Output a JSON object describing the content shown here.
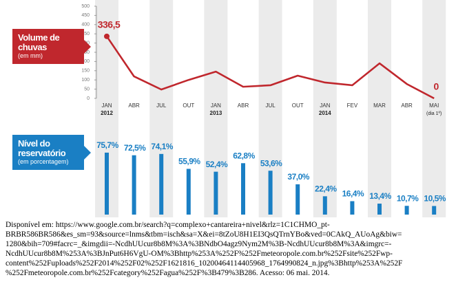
{
  "chart_data": [
    {
      "type": "line",
      "categories": [
        "JAN",
        "ABR",
        "JUL",
        "OUT",
        "JAN",
        "ABR",
        "JUL",
        "OUT",
        "JAN",
        "FEV",
        "MAR",
        "ABR",
        "MAI"
      ],
      "sub_labels": [
        "2012",
        null,
        null,
        null,
        "2013",
        null,
        null,
        null,
        "2014",
        null,
        null,
        null,
        "(dia 1º)"
      ],
      "series": [
        {
          "name": "Volume de chuvas",
          "unit_label": "(em mm)",
          "color": "#c0272d",
          "values": [
            336.5,
            119,
            48,
            100,
            145,
            63,
            71,
            123,
            86,
            71,
            190,
            78,
            0
          ],
          "value_labels": [
            "336,5",
            null,
            null,
            null,
            null,
            null,
            null,
            null,
            null,
            null,
            null,
            null,
            "0"
          ]
        }
      ],
      "ylim": [
        0,
        500
      ],
      "yticks": [
        0,
        50,
        100,
        150,
        200,
        250,
        300,
        350,
        400,
        450,
        500
      ]
    },
    {
      "type": "bar",
      "series": [
        {
          "name": "Nível do reservatório",
          "unit_label": "(em porcentagem)",
          "color": "#1a7fc4",
          "values": [
            75.7,
            72.5,
            74.1,
            55.9,
            52.4,
            62.8,
            53.6,
            37.0,
            22.4,
            16.4,
            13.4,
            10.7,
            10.5
          ],
          "value_labels": [
            "75,7%",
            "72,5%",
            "74,1%",
            "55,9%",
            "52,4%",
            "62,8%",
            "53,6%",
            "37,0%",
            "22,4%",
            "16,4%",
            "13,4%",
            "10,7%",
            "10,5%"
          ]
        }
      ]
    }
  ],
  "caption": [
    "Disponível em: https://www.google.com.br/search?q=complexo+cantareira+nivel&rlz=1C1CHMO_pt-",
    "BRBR586BR586&es_sm=93&source=lnms&tbm=isch&sa=X&ei=8tZoU8H1EI3QsQTrnYBo&ved=0CAkQ_AUoAg&biw=",
    "1280&bih=709#facrc=_&imgdii=-NcdhUUcur8b8M%3A%3BNdbO4agz9Nym2M%3B-NcdhUUcur8b8M%3A&imgrc=-",
    "NcdhUUcur8b8M%253A%3BJnPut6H6VgU-OM%3Bhttp%253A%252F%252Fmeteoropole.com.br%252Fsite%252Fwp-",
    "content%252Fuploads%252F2014%252F02%252F1621816_10200464114405968_1764990824_n.jpg%3Bhttp%253A%252F",
    "%252Fmeteoropole.com.br%252Fcategory%252Fagua%252F%3B479%3B286. Acesso: 06 mai. 2014."
  ]
}
